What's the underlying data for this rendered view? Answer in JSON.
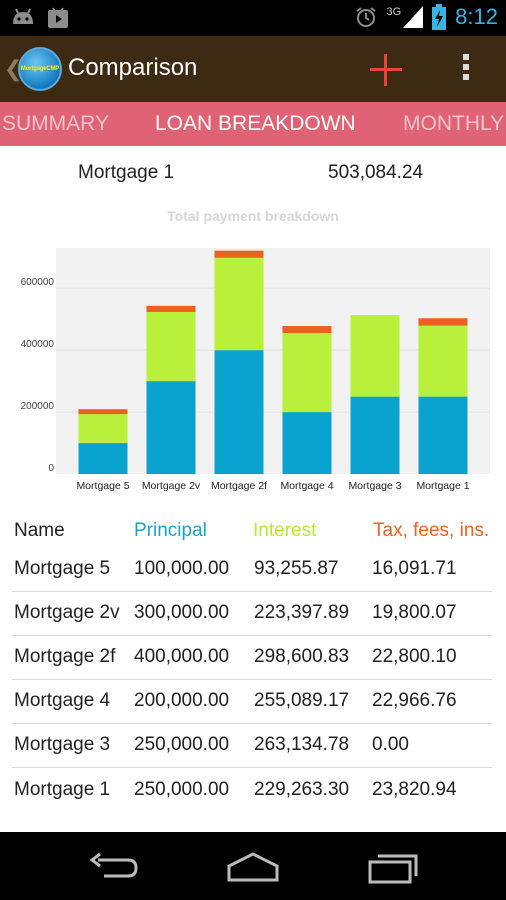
{
  "status_bar": {
    "network": "3G",
    "time": "8:12",
    "left_icons": [
      "android-icon",
      "play-store-icon"
    ],
    "right_icons": [
      "alarm-icon",
      "signal-icon",
      "battery-charging-icon"
    ]
  },
  "action_bar": {
    "logo_text": "MortgageCMP",
    "title": "Comparison",
    "add_icon": "plus-icon",
    "overflow_icon": "overflow-menu-icon"
  },
  "tabs": [
    {
      "label": "SUMMARY",
      "active": false
    },
    {
      "label": "LOAN BREAKDOWN",
      "active": true
    },
    {
      "label": "MONTHLY",
      "active": false
    }
  ],
  "selected": {
    "name": "Mortgage 1",
    "total": "503,084.24"
  },
  "chart_data": {
    "type": "bar",
    "stacked": true,
    "title": "Total payment breakdown",
    "categories": [
      "Mortgage 5",
      "Mortgage 2v",
      "Mortgage 2f",
      "Mortgage 4",
      "Mortgage 3",
      "Mortgage 1"
    ],
    "series": [
      {
        "values": [
          100000,
          300000,
          400000,
          200000,
          250000,
          250000
        ],
        "color": "#0aa3cf"
      },
      {
        "values": [
          93255.87,
          223397.89,
          298600.83,
          255089.17,
          263134.78,
          229263.3
        ],
        "color": "#b8f03c"
      },
      {
        "values": [
          16091.71,
          19800.07,
          22800.1,
          22966.76,
          0,
          23820.94
        ],
        "color": "#e9621f"
      }
    ],
    "y_ticks": [
      0,
      200000,
      400000,
      600000
    ],
    "ylim": [
      0,
      730000
    ],
    "grid": true,
    "background": "#f2f2f2"
  },
  "table": {
    "headers": [
      {
        "label": "Name",
        "color": "#222222"
      },
      {
        "label": "Principal",
        "color": "#1aa2cc"
      },
      {
        "label": "Interest",
        "color": "#b6e83a"
      },
      {
        "label": "Tax, fees, ins.",
        "color": "#e9621f"
      }
    ],
    "rows": [
      [
        "Mortgage 5",
        "100,000.00",
        "93,255.87",
        "16,091.71"
      ],
      [
        "Mortgage 2v",
        "300,000.00",
        "223,397.89",
        "19,800.07"
      ],
      [
        "Mortgage 2f",
        "400,000.00",
        "298,600.83",
        "22,800.10"
      ],
      [
        "Mortgage 4",
        "200,000.00",
        "255,089.17",
        "22,966.76"
      ],
      [
        "Mortgage 3",
        "250,000.00",
        "263,134.78",
        "0.00"
      ],
      [
        "Mortgage 1",
        "250,000.00",
        "229,263.30",
        "23,820.94"
      ]
    ]
  },
  "nav_bar": {
    "buttons": [
      "back-icon",
      "home-icon",
      "recent-apps-icon"
    ]
  }
}
